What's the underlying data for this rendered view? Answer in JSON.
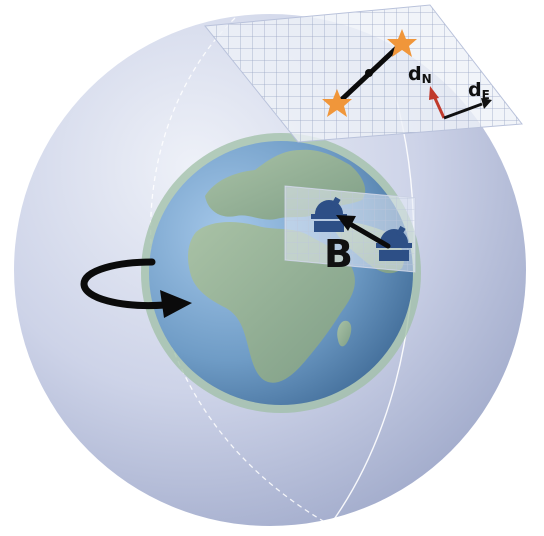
{
  "labels": {
    "baseline": "B",
    "north_vector": "d",
    "north_subscript": "N",
    "east_vector": "d",
    "east_subscript": "E"
  },
  "colors": {
    "sky_sphere": "#c3cbe2",
    "earth_ocean": "#6f9cc6",
    "earth_land": "#98b49a",
    "telescope": "#2d4f86",
    "star": "#f0963a",
    "north_arrow": "#c0392b",
    "east_arrow": "#111111"
  },
  "icons": {
    "rotation": "rotation-arrow-icon",
    "telescope": "telescope-icon",
    "star": "star-icon"
  }
}
